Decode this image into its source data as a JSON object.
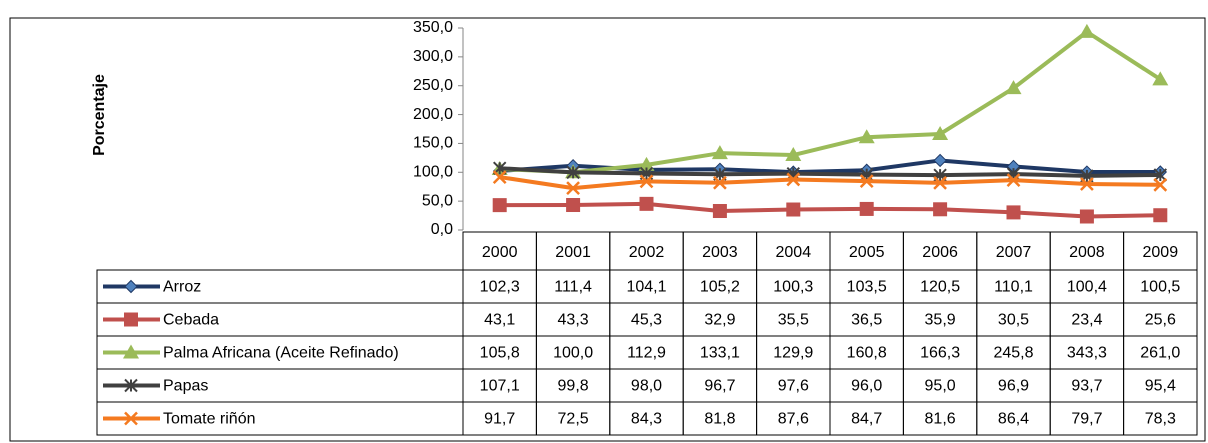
{
  "chart_data": {
    "type": "line",
    "y_label": "Porcentaje",
    "categories": [
      "2000",
      "2001",
      "2002",
      "2003",
      "2004",
      "2005",
      "2006",
      "2007",
      "2008",
      "2009"
    ],
    "ylim": [
      0,
      350
    ],
    "yticks": [
      {
        "value": 0,
        "label": "0,0"
      },
      {
        "value": 50,
        "label": "50,0"
      },
      {
        "value": 100,
        "label": "100,0"
      },
      {
        "value": 150,
        "label": "150,0"
      },
      {
        "value": 200,
        "label": "200,0"
      },
      {
        "value": 250,
        "label": "250,0"
      },
      {
        "value": 300,
        "label": "300,0"
      },
      {
        "value": 350,
        "label": "350,0"
      }
    ],
    "grid": false,
    "series": [
      {
        "name": "Arroz",
        "color": "#1f3864",
        "marker": "diamond",
        "marker_color": "#4f81bd",
        "values": [
          102.3,
          111.4,
          104.1,
          105.2,
          100.3,
          103.5,
          120.5,
          110.1,
          100.4,
          100.5
        ],
        "value_labels": [
          "102,3",
          "111,4",
          "104,1",
          "105,2",
          "100,3",
          "103,5",
          "120,5",
          "110,1",
          "100,4",
          "100,5"
        ]
      },
      {
        "name": "Cebada",
        "color": "#c0504d",
        "marker": "square",
        "marker_color": "#c0504d",
        "values": [
          43.1,
          43.3,
          45.3,
          32.9,
          35.5,
          36.5,
          35.9,
          30.5,
          23.4,
          25.6
        ],
        "value_labels": [
          "43,1",
          "43,3",
          "45,3",
          "32,9",
          "35,5",
          "36,5",
          "35,9",
          "30,5",
          "23,4",
          "25,6"
        ]
      },
      {
        "name": "Palma Africana (Aceite Refinado)",
        "color": "#9bbb59",
        "marker": "triangle",
        "marker_color": "#9bbb59",
        "values": [
          105.8,
          100.0,
          112.9,
          133.1,
          129.9,
          160.8,
          166.3,
          245.8,
          343.3,
          261.0
        ],
        "value_labels": [
          "105,8",
          "100,0",
          "112,9",
          "133,1",
          "129,9",
          "160,8",
          "166,3",
          "245,8",
          "343,3",
          "261,0"
        ]
      },
      {
        "name": "Papas",
        "color": "#404040",
        "marker": "star",
        "marker_color": "#404040",
        "values": [
          107.1,
          99.8,
          98.0,
          96.7,
          97.6,
          96.0,
          95.0,
          96.9,
          93.7,
          95.4
        ],
        "value_labels": [
          "107,1",
          "99,8",
          "98,0",
          "96,7",
          "97,6",
          "96,0",
          "95,0",
          "96,9",
          "93,7",
          "95,4"
        ]
      },
      {
        "name": "Tomate riñón",
        "color": "#f47a20",
        "marker": "x",
        "marker_color": "#f47a20",
        "values": [
          91.7,
          72.5,
          84.3,
          81.8,
          87.6,
          84.7,
          81.6,
          86.4,
          79.7,
          78.3
        ],
        "value_labels": [
          "91,7",
          "72,5",
          "84,3",
          "81,8",
          "87,6",
          "84,7",
          "81,6",
          "86,4",
          "79,7",
          "78,3"
        ]
      }
    ]
  }
}
